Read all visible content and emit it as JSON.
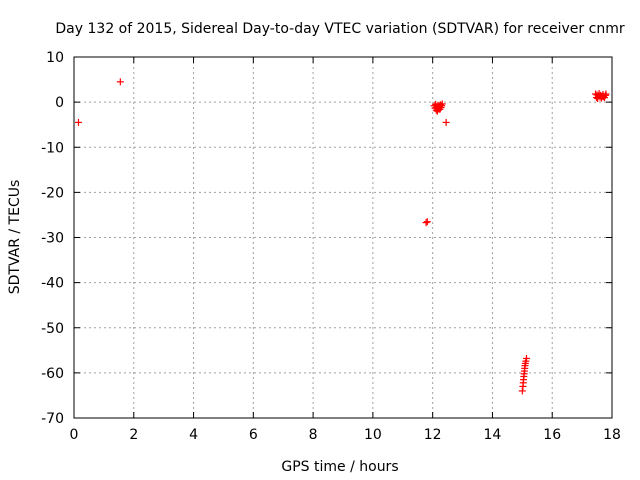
{
  "chart_data": {
    "type": "scatter",
    "title": "Day 132 of 2015, Sidereal Day-to-day VTEC variation (SDTVAR) for receiver cnmr",
    "xlabel": "GPS time / hours",
    "ylabel": "SDTVAR / TECUs",
    "xlim": [
      0,
      18
    ],
    "ylim": [
      -70,
      10
    ],
    "xticks": [
      0,
      2,
      4,
      6,
      8,
      10,
      12,
      14,
      16,
      18
    ],
    "yticks": [
      10,
      0,
      -10,
      -20,
      -30,
      -40,
      -50,
      -60,
      -70
    ],
    "grid": true,
    "marker": "+",
    "series": [
      {
        "name": "SDTVAR",
        "color": "#ff0000",
        "points": [
          [
            0.15,
            -4.5
          ],
          [
            1.55,
            4.5
          ],
          [
            11.78,
            -26.7
          ],
          [
            11.82,
            -26.5
          ],
          [
            12.05,
            -0.8
          ],
          [
            12.08,
            -1.3
          ],
          [
            12.1,
            -0.5
          ],
          [
            12.12,
            -1.8
          ],
          [
            12.14,
            -1.0
          ],
          [
            12.16,
            -2.0
          ],
          [
            12.18,
            -0.7
          ],
          [
            12.2,
            -1.5
          ],
          [
            12.22,
            -0.9
          ],
          [
            12.24,
            -1.6
          ],
          [
            12.26,
            -0.6
          ],
          [
            12.28,
            -1.2
          ],
          [
            12.3,
            -0.8
          ],
          [
            12.32,
            -0.4
          ],
          [
            12.45,
            -4.5
          ],
          [
            15.0,
            -64.0
          ],
          [
            15.02,
            -63.0
          ],
          [
            15.03,
            -62.2
          ],
          [
            15.04,
            -61.5
          ],
          [
            15.05,
            -60.8
          ],
          [
            15.06,
            -60.2
          ],
          [
            15.07,
            -59.6
          ],
          [
            15.08,
            -59.0
          ],
          [
            15.09,
            -58.4
          ],
          [
            15.1,
            -57.9
          ],
          [
            15.12,
            -57.4
          ],
          [
            15.14,
            -56.8
          ],
          [
            17.45,
            1.8
          ],
          [
            17.48,
            1.0
          ],
          [
            17.5,
            1.6
          ],
          [
            17.52,
            0.8
          ],
          [
            17.55,
            1.4
          ],
          [
            17.57,
            1.9
          ],
          [
            17.6,
            1.1
          ],
          [
            17.62,
            1.5
          ],
          [
            17.65,
            0.9
          ],
          [
            17.68,
            1.3
          ],
          [
            17.7,
            1.7
          ],
          [
            17.72,
            1.2
          ],
          [
            17.75,
            1.0
          ],
          [
            17.78,
            1.5
          ],
          [
            17.8,
            1.8
          ]
        ]
      }
    ]
  }
}
